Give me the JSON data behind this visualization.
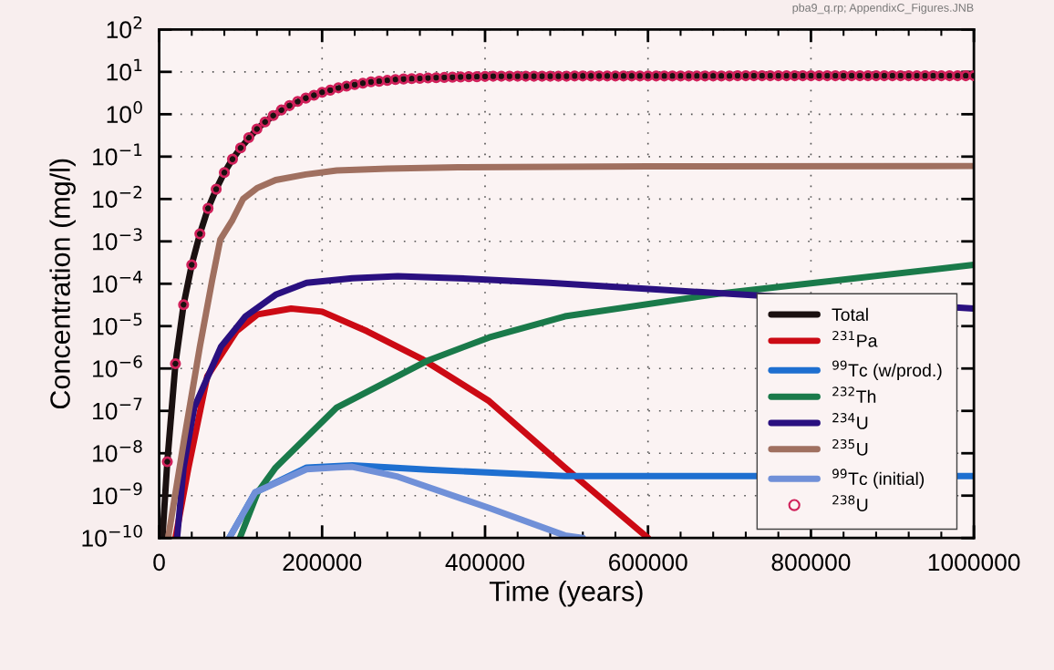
{
  "chart_data": {
    "type": "line",
    "xlabel": "Time (years)",
    "ylabel": "Concentration (mg/l)",
    "annotations": [
      "pba9_q.rp; AppendixC_Figures.JNB"
    ],
    "log": "y",
    "grid": true,
    "legend": "lower right",
    "marker": "none",
    "line_style": "solid",
    "xlim": [
      0,
      1000000
    ],
    "xticks": [
      0,
      200000,
      400000,
      600000,
      800000,
      1000000
    ],
    "ylim": [
      1e-10,
      100
    ],
    "yticks": [
      {
        "value": 1e-10,
        "label": "10$^{−10}$"
      },
      {
        "value": 1e-09,
        "label": "10$^{−9}$"
      },
      {
        "value": 1e-08,
        "label": "10$^{−8}$"
      },
      {
        "value": 1e-07,
        "label": "10$^{−7}$"
      },
      {
        "value": 1e-06,
        "label": "10$^{−6}$"
      },
      {
        "value": 1e-05,
        "label": "10$^{−5}$"
      },
      {
        "value": 0.0001,
        "label": "10$^{−4}$"
      },
      {
        "value": 0.001,
        "label": "10$^{−3}$"
      },
      {
        "value": 0.01,
        "label": "10$^{−2}$"
      },
      {
        "value": 0.1,
        "label": "10$^{−1}$"
      },
      {
        "value": 1,
        "label": "10$^{0}$"
      },
      {
        "value": 10,
        "label": "10$^{1}$"
      },
      {
        "value": 100,
        "label": "10$^{2}$"
      }
    ],
    "series": [
      {
        "name": "Total",
        "color": "#1a1010",
        "x": [
          4000,
          10000,
          20000,
          30000,
          40000,
          50000,
          60000,
          70000,
          80000,
          90000,
          100000,
          120000,
          140000,
          160000,
          180000,
          200000,
          230000,
          260000,
          300000,
          350000,
          400000,
          500000,
          700000,
          1000000
        ],
        "values": [
          1e-10,
          6.3e-09,
          1.3e-06,
          3.2e-05,
          0.00028,
          0.0015,
          0.006,
          0.017,
          0.042,
          0.087,
          0.16,
          0.45,
          0.93,
          1.6,
          2.4,
          3.3,
          4.6,
          5.8,
          6.8,
          7.4,
          7.8,
          7.9,
          8.0,
          8.1
        ]
      },
      {
        "name": "$^{231}$Pa",
        "color": "#cc0a14",
        "x": [
          20000,
          36000,
          59000,
          95000,
          121000,
          162000,
          200000,
          255000,
          322000,
          405000,
          498000,
          600000
        ],
        "values": [
          1e-10,
          4.6e-09,
          6.5e-07,
          7.6e-06,
          1.9e-05,
          2.6e-05,
          2.2e-05,
          7.6e-06,
          1.7e-06,
          1.7e-07,
          4.6e-09,
          1e-10
        ]
      },
      {
        "name": "$^{99}$Tc (w/prod.)",
        "color": "#1e6fd0",
        "x": [
          86000,
          118000,
          181000,
          237000,
          330000,
          498000,
          700000,
          1000000
        ],
        "values": [
          1e-10,
          1.2e-09,
          4.6e-09,
          5.2e-09,
          4.1e-09,
          2.9e-09,
          2.9e-09,
          2.9e-09
        ]
      },
      {
        "name": "$^{232}$Th",
        "color": "#1a7a4a",
        "x": [
          99000,
          121000,
          143000,
          218000,
          330000,
          405000,
          498000,
          686000,
          1000000
        ],
        "values": [
          1e-10,
          1.2e-09,
          4.6e-09,
          1.2e-07,
          1.55e-06,
          5.4e-06,
          1.7e-05,
          5.8e-05,
          0.00028
        ]
      },
      {
        "name": "$^{234}$U",
        "color": "#2a1080",
        "x": [
          22000,
          30000,
          43000,
          76000,
          106000,
          143000,
          181000,
          237000,
          293000,
          367000,
          479000,
          686000,
          1000000
        ],
        "values": [
          1e-10,
          4.6e-09,
          1.2e-07,
          3.3e-06,
          1.7e-05,
          5.5e-05,
          0.000105,
          0.000135,
          0.00015,
          0.000135,
          0.000105,
          6e-05,
          2.6e-05
        ]
      },
      {
        "name": "$^{235}$U",
        "color": "#a07060",
        "x": [
          11000,
          31000,
          50000,
          65000,
          75000,
          90000,
          103000,
          120000,
          143000,
          180000,
          218000,
          280000,
          367000,
          600000,
          1000000
        ],
        "values": [
          1e-10,
          2.3e-08,
          3.3e-06,
          0.00012,
          0.0011,
          0.0032,
          0.01,
          0.018,
          0.028,
          0.038,
          0.047,
          0.052,
          0.056,
          0.059,
          0.06
        ]
      },
      {
        "name": "$^{99}$Tc (initial)",
        "color": "#7090d8",
        "x": [
          86000,
          118000,
          181000,
          218000,
          237000,
          293000,
          405000,
          498000,
          520000
        ],
        "values": [
          1e-10,
          1.2e-09,
          4.2e-09,
          4.6e-09,
          4.8e-09,
          2.8e-09,
          5.1e-10,
          1.15e-10,
          1e-10
        ]
      },
      {
        "name": "$^{238}$U",
        "type": "scatter",
        "marker": "circle",
        "color": "#d0205a",
        "x": [
          10000,
          20000,
          30000,
          40000,
          50000,
          60000,
          70000,
          80000,
          90000,
          100000,
          110000,
          120000,
          130000,
          140000,
          150000,
          160000,
          170000,
          180000,
          190000,
          200000,
          210000,
          220000,
          230000,
          240000,
          250000,
          260000,
          270000,
          280000,
          290000,
          300000,
          310000,
          320000,
          330000,
          340000,
          350000,
          360000,
          370000,
          380000,
          390000,
          400000,
          410000,
          420000,
          430000,
          440000,
          450000,
          460000,
          470000,
          480000,
          490000,
          500000,
          510000,
          520000,
          530000,
          540000,
          550000,
          560000,
          570000,
          580000,
          590000,
          600000,
          610000,
          620000,
          630000,
          640000,
          650000,
          660000,
          670000,
          680000,
          690000,
          700000,
          710000,
          720000,
          730000,
          740000,
          750000,
          760000,
          770000,
          780000,
          790000,
          800000,
          810000,
          820000,
          830000,
          840000,
          850000,
          860000,
          870000,
          880000,
          890000,
          900000,
          910000,
          920000,
          930000,
          940000,
          950000,
          960000,
          970000,
          980000,
          990000,
          1000000
        ],
        "values": [
          6.3e-09,
          1.3e-06,
          3.2e-05,
          0.00028,
          0.0015,
          0.006,
          0.017,
          0.042,
          0.087,
          0.16,
          0.28,
          0.45,
          0.66,
          0.93,
          1.26,
          1.6,
          2.0,
          2.4,
          2.8,
          3.3,
          3.7,
          4.2,
          4.6,
          5.0,
          5.4,
          5.8,
          6.0,
          6.3,
          6.6,
          6.8,
          6.9,
          7.0,
          7.2,
          7.3,
          7.4,
          7.5,
          7.6,
          7.7,
          7.7,
          7.8,
          7.9,
          7.9,
          7.9,
          7.9,
          7.9,
          7.9,
          7.9,
          7.9,
          7.9,
          7.9,
          8.0,
          8.0,
          8.0,
          8.0,
          8.0,
          8.0,
          8.0,
          8.0,
          8.0,
          8.0,
          8.0,
          8.0,
          8.0,
          8.0,
          8.0,
          8.0,
          8.0,
          8.0,
          8.0,
          8.0,
          8.1,
          8.1,
          8.1,
          8.1,
          8.1,
          8.1,
          8.1,
          8.1,
          8.1,
          8.1,
          8.1,
          8.1,
          8.1,
          8.1,
          8.1,
          8.1,
          8.1,
          8.1,
          8.1,
          8.1,
          8.1,
          8.1,
          8.1,
          8.1,
          8.1,
          8.1,
          8.1,
          8.1,
          8.1,
          8.1
        ]
      }
    ]
  }
}
